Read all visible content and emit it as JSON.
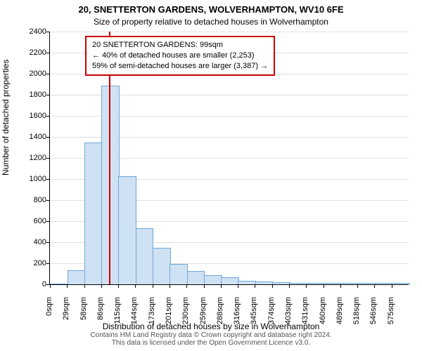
{
  "chart": {
    "type": "histogram",
    "title_main": "20, SNETTERTON GARDENS, WOLVERHAMPTON, WV10 6FE",
    "title_sub": "Size of property relative to detached houses in Wolverhampton",
    "y_axis_label": "Number of detached properties",
    "x_axis_label": "Distribution of detached houses by size in Wolverhampton",
    "credit": "Contains HM Land Registry data © Crown copyright and database right 2024.\nThis data is licensed under the Open Government Licence v3.0.",
    "background_color": "#ffffff",
    "grid_color": "#e0e0e0",
    "axis_color": "#000000",
    "title_fontsize": 13,
    "subtitle_fontsize": 12,
    "label_fontsize": 12,
    "tick_fontsize": 11,
    "anno_fontsize": 11,
    "y": {
      "min": 0,
      "max": 2400,
      "ticks": [
        0,
        200,
        400,
        600,
        800,
        1000,
        1200,
        1400,
        1600,
        1800,
        2000,
        2200,
        2400
      ]
    },
    "x": {
      "min": 0,
      "max_index": 21,
      "tick_labels": [
        "0sqm",
        "29sqm",
        "58sqm",
        "86sqm",
        "115sqm",
        "144sqm",
        "173sqm",
        "201sqm",
        "230sqm",
        "259sqm",
        "288sqm",
        "316sqm",
        "345sqm",
        "374sqm",
        "403sqm",
        "431sqm",
        "460sqm",
        "489sqm",
        "518sqm",
        "546sqm",
        "575sqm"
      ]
    },
    "bars": {
      "values": [
        0,
        130,
        1340,
        1880,
        1020,
        530,
        340,
        190,
        120,
        80,
        60,
        30,
        20,
        15,
        10,
        10,
        10,
        5,
        5,
        5,
        5
      ],
      "fill_color": "#cfe2f3",
      "border_color": "#6fa8dc",
      "bar_width_frac": 0.98
    },
    "marker": {
      "x_value": 99,
      "x_max_value": 604,
      "color": "#cc0000"
    },
    "annotation": {
      "border_color": "#cc0000",
      "line1": "20 SNETTERTON GARDENS: 99sqm",
      "line2": "← 40% of detached houses are smaller (2,253)",
      "line3": "59% of semi-detached houses are larger (3,387) →"
    }
  }
}
